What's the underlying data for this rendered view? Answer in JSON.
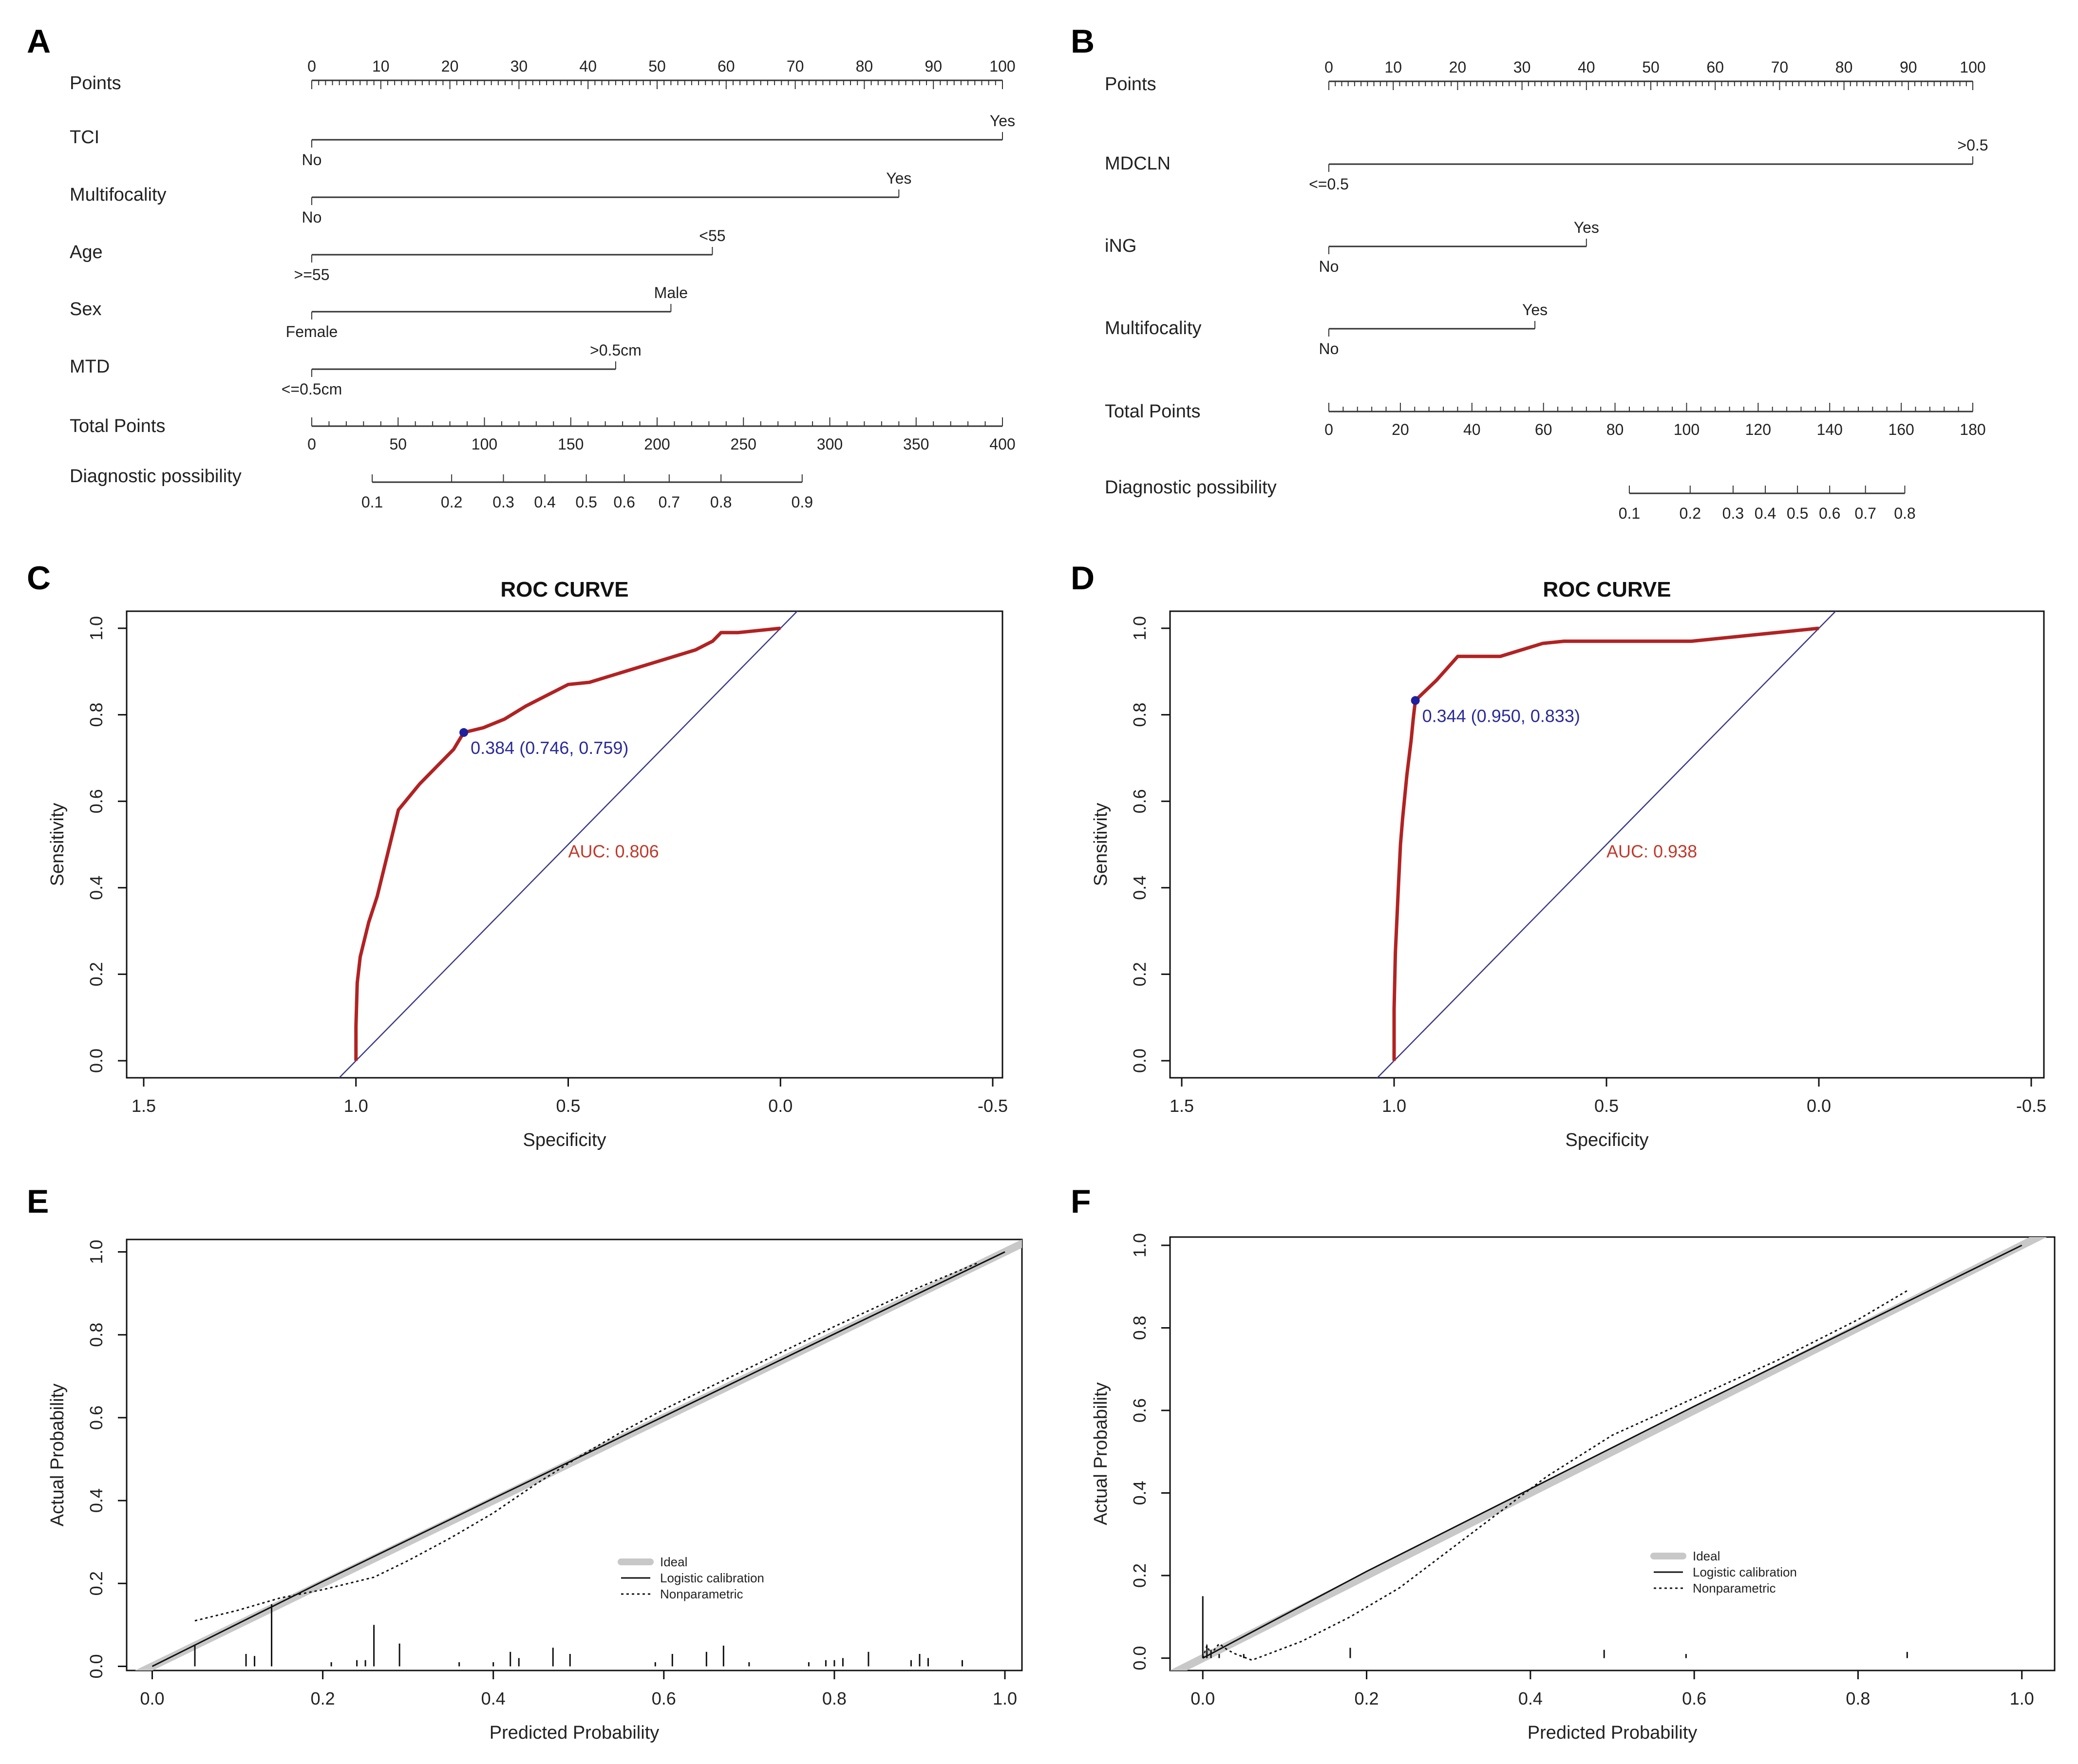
{
  "figure": {
    "panel_letters": [
      "A",
      "B",
      "C",
      "D",
      "E",
      "F"
    ]
  },
  "chart_data": [
    {
      "panel": "A",
      "type": "nomogram",
      "points_label": "Points",
      "points_ticks": [
        "0",
        "10",
        "20",
        "30",
        "40",
        "50",
        "60",
        "70",
        "80",
        "90",
        "100"
      ],
      "points_range": [
        0,
        100
      ],
      "variables": [
        {
          "name": "TCI",
          "low_label": "No",
          "high_label": "Yes",
          "points": 100
        },
        {
          "name": "Multifocality",
          "low_label": "No",
          "high_label": "Yes",
          "points": 85
        },
        {
          "name": "Age",
          "low_label": ">=55",
          "high_label": "<55",
          "points": 58
        },
        {
          "name": "Sex",
          "low_label": "Female",
          "high_label": "Male",
          "points": 52
        },
        {
          "name": "MTD",
          "low_label": "<=0.5cm",
          "high_label": ">0.5cm",
          "points": 44
        }
      ],
      "total_label": "Total Points",
      "total_ticks": [
        "0",
        "50",
        "100",
        "150",
        "200",
        "250",
        "300",
        "350",
        "400"
      ],
      "total_range": [
        0,
        400
      ],
      "prob_label": "Diagnostic possibility",
      "prob_ticks": [
        {
          "label": "0.1",
          "total": 35
        },
        {
          "label": "0.2",
          "total": 81
        },
        {
          "label": "0.3",
          "total": 111
        },
        {
          "label": "0.4",
          "total": 135
        },
        {
          "label": "0.5",
          "total": 159
        },
        {
          "label": "0.6",
          "total": 181
        },
        {
          "label": "0.7",
          "total": 207
        },
        {
          "label": "0.8",
          "total": 237
        },
        {
          "label": "0.9",
          "total": 284
        }
      ]
    },
    {
      "panel": "B",
      "type": "nomogram",
      "points_label": "Points",
      "points_ticks": [
        "0",
        "10",
        "20",
        "30",
        "40",
        "50",
        "60",
        "70",
        "80",
        "90",
        "100"
      ],
      "points_range": [
        0,
        100
      ],
      "variables": [
        {
          "name": "MDCLN",
          "low_label": "<=0.5",
          "high_label": ">0.5",
          "points": 100
        },
        {
          "name": "iNG",
          "low_label": "No",
          "high_label": "Yes",
          "points": 40
        },
        {
          "name": "Multifocality",
          "low_label": "No",
          "high_label": "Yes",
          "points": 32
        }
      ],
      "total_label": "Total Points",
      "total_ticks": [
        "0",
        "20",
        "40",
        "60",
        "80",
        "100",
        "120",
        "140",
        "160",
        "180"
      ],
      "total_range": [
        0,
        180
      ],
      "prob_label": "Diagnostic possibility",
      "prob_ticks": [
        {
          "label": "0.1",
          "total": 84
        },
        {
          "label": "0.2",
          "total": 101
        },
        {
          "label": "0.3",
          "total": 113
        },
        {
          "label": "0.4",
          "total": 122
        },
        {
          "label": "0.5",
          "total": 131
        },
        {
          "label": "0.6",
          "total": 140
        },
        {
          "label": "0.7",
          "total": 150
        },
        {
          "label": "0.8",
          "total": 161
        }
      ]
    },
    {
      "panel": "C",
      "type": "line",
      "title": "ROC CURVE",
      "xlabel": "Specificity",
      "ylabel": "Sensitivity",
      "xlim": [
        1.5,
        -0.5
      ],
      "ylim": [
        0,
        1
      ],
      "x_ticks": [
        "1.5",
        "1.0",
        "0.5",
        "0.0",
        "-0.5"
      ],
      "y_ticks": [
        "0.0",
        "0.2",
        "0.4",
        "0.6",
        "0.8",
        "1.0"
      ],
      "series": [
        {
          "x": [
            1.0,
            1.0,
            0.997,
            0.99,
            0.98,
            0.97,
            0.95,
            0.94,
            0.93,
            0.9,
            0.85,
            0.8,
            0.77,
            0.746,
            0.7,
            0.65,
            0.6,
            0.55,
            0.5,
            0.45,
            0.4,
            0.35,
            0.3,
            0.25,
            0.2,
            0.18,
            0.16,
            0.14,
            0.1,
            0.05,
            0.0
          ],
          "y": [
            0.0,
            0.08,
            0.18,
            0.24,
            0.28,
            0.32,
            0.38,
            0.42,
            0.46,
            0.58,
            0.64,
            0.69,
            0.72,
            0.759,
            0.77,
            0.79,
            0.82,
            0.845,
            0.87,
            0.875,
            0.89,
            0.905,
            0.92,
            0.935,
            0.95,
            0.96,
            0.97,
            0.99,
            0.99,
            0.995,
            1.0
          ]
        }
      ],
      "reference_line": {
        "from": [
          1.0,
          0.0
        ],
        "to": [
          0.0,
          1.0
        ]
      },
      "best_point": {
        "x": 0.746,
        "y": 0.759,
        "label": "0.384 (0.746, 0.759)"
      },
      "auc_label": "AUC: 0.806",
      "auc_label_at": [
        0.5,
        0.47
      ]
    },
    {
      "panel": "D",
      "type": "line",
      "title": "ROC CURVE",
      "xlabel": "Specificity",
      "ylabel": "Sensitivity",
      "xlim": [
        1.5,
        -0.5
      ],
      "ylim": [
        0,
        1
      ],
      "x_ticks": [
        "1.5",
        "1.0",
        "0.5",
        "0.0",
        "-0.5"
      ],
      "y_ticks": [
        "0.0",
        "0.2",
        "0.4",
        "0.6",
        "0.8",
        "1.0"
      ],
      "series": [
        {
          "x": [
            1.0,
            1.0,
            0.997,
            0.99,
            0.985,
            0.98,
            0.97,
            0.96,
            0.955,
            0.95,
            0.9,
            0.85,
            0.8,
            0.75,
            0.7,
            0.65,
            0.6,
            0.5,
            0.4,
            0.3,
            0.2,
            0.1,
            0.05,
            0.0
          ],
          "y": [
            0.0,
            0.12,
            0.25,
            0.4,
            0.5,
            0.56,
            0.66,
            0.74,
            0.79,
            0.833,
            0.88,
            0.935,
            0.935,
            0.935,
            0.95,
            0.965,
            0.97,
            0.97,
            0.97,
            0.97,
            0.98,
            0.99,
            0.995,
            1.0
          ]
        }
      ],
      "reference_line": {
        "from": [
          1.0,
          0.0
        ],
        "to": [
          0.0,
          1.0
        ]
      },
      "best_point": {
        "x": 0.95,
        "y": 0.833,
        "label": "0.344 (0.950, 0.833)"
      },
      "auc_label": "AUC: 0.938",
      "auc_label_at": [
        0.5,
        0.47
      ]
    },
    {
      "panel": "E",
      "type": "line",
      "xlabel": "Predicted Probability",
      "ylabel": "Actual Probability",
      "xlim": [
        -0.03,
        1.02
      ],
      "ylim": [
        -0.01,
        1.03
      ],
      "x_ticks": [
        "0.0",
        "0.2",
        "0.4",
        "0.6",
        "0.8",
        "1.0"
      ],
      "y_ticks": [
        "0.0",
        "0.2",
        "0.4",
        "0.6",
        "0.8",
        "1.0"
      ],
      "legend": [
        "Ideal",
        "Logistic calibration",
        "Nonparametric"
      ],
      "legend_position": "bottom-right",
      "series": [
        {
          "name": "Ideal",
          "x": [
            -0.03,
            1.02
          ],
          "y": [
            -0.03,
            1.02
          ]
        },
        {
          "name": "Logistic calibration",
          "x": [
            0.0,
            0.2,
            0.4,
            0.6,
            0.8,
            1.0
          ],
          "y": [
            0.0,
            0.205,
            0.405,
            0.603,
            0.802,
            1.0
          ]
        },
        {
          "name": "Nonparametric",
          "x": [
            0.05,
            0.1,
            0.15,
            0.2,
            0.26,
            0.3,
            0.35,
            0.4,
            0.45,
            0.5,
            0.55,
            0.6,
            0.7,
            0.8,
            0.9,
            0.97
          ],
          "y": [
            0.11,
            0.135,
            0.165,
            0.185,
            0.215,
            0.255,
            0.31,
            0.37,
            0.44,
            0.505,
            0.565,
            0.62,
            0.72,
            0.82,
            0.915,
            0.975
          ]
        }
      ],
      "rug": [
        [
          0.05,
          0.05
        ],
        [
          0.11,
          0.03
        ],
        [
          0.12,
          0.025
        ],
        [
          0.14,
          0.15
        ],
        [
          0.21,
          0.01
        ],
        [
          0.24,
          0.015
        ],
        [
          0.25,
          0.015
        ],
        [
          0.26,
          0.1
        ],
        [
          0.29,
          0.055
        ],
        [
          0.36,
          0.01
        ],
        [
          0.4,
          0.01
        ],
        [
          0.42,
          0.035
        ],
        [
          0.43,
          0.02
        ],
        [
          0.47,
          0.045
        ],
        [
          0.49,
          0.03
        ],
        [
          0.59,
          0.01
        ],
        [
          0.61,
          0.03
        ],
        [
          0.65,
          0.035
        ],
        [
          0.67,
          0.05
        ],
        [
          0.7,
          0.01
        ],
        [
          0.77,
          0.01
        ],
        [
          0.79,
          0.015
        ],
        [
          0.8,
          0.015
        ],
        [
          0.81,
          0.02
        ],
        [
          0.84,
          0.035
        ],
        [
          0.89,
          0.015
        ],
        [
          0.9,
          0.03
        ],
        [
          0.91,
          0.02
        ],
        [
          0.95,
          0.015
        ]
      ]
    },
    {
      "panel": "F",
      "type": "line",
      "xlabel": "Predicted Probability",
      "ylabel": "Actual Probability",
      "xlim": [
        -0.04,
        1.04
      ],
      "ylim": [
        -0.03,
        1.02
      ],
      "x_ticks": [
        "0.0",
        "0.2",
        "0.4",
        "0.6",
        "0.8",
        "1.0"
      ],
      "y_ticks": [
        "0.0",
        "0.2",
        "0.4",
        "0.6",
        "0.8",
        "1.0"
      ],
      "legend": [
        "Ideal",
        "Logistic calibration",
        "Nonparametric"
      ],
      "legend_position": "bottom-right",
      "series": [
        {
          "name": "Ideal",
          "x": [
            -0.04,
            1.04
          ],
          "y": [
            -0.04,
            1.04
          ]
        },
        {
          "name": "Logistic calibration",
          "x": [
            0.0,
            0.2,
            0.4,
            0.6,
            0.8,
            1.0
          ],
          "y": [
            0.0,
            0.21,
            0.41,
            0.61,
            0.805,
            1.0
          ]
        },
        {
          "name": "Nonparametric",
          "x": [
            0.0,
            0.005,
            0.01,
            0.02,
            0.03,
            0.04,
            0.06,
            0.08,
            0.12,
            0.18,
            0.24,
            0.3,
            0.36,
            0.42,
            0.5,
            0.6,
            0.7,
            0.8,
            0.86
          ],
          "y": [
            0.0,
            0.03,
            0.01,
            0.035,
            0.02,
            0.01,
            -0.005,
            0.01,
            0.04,
            0.1,
            0.17,
            0.26,
            0.35,
            0.44,
            0.54,
            0.63,
            0.72,
            0.82,
            0.89
          ]
        }
      ],
      "rug": [
        [
          0.0,
          0.15
        ],
        [
          0.005,
          0.03
        ],
        [
          0.01,
          0.02
        ],
        [
          0.02,
          0.01
        ],
        [
          0.05,
          0.01
        ],
        [
          0.18,
          0.025
        ],
        [
          0.49,
          0.02
        ],
        [
          0.59,
          0.01
        ],
        [
          0.86,
          0.015
        ]
      ]
    }
  ]
}
